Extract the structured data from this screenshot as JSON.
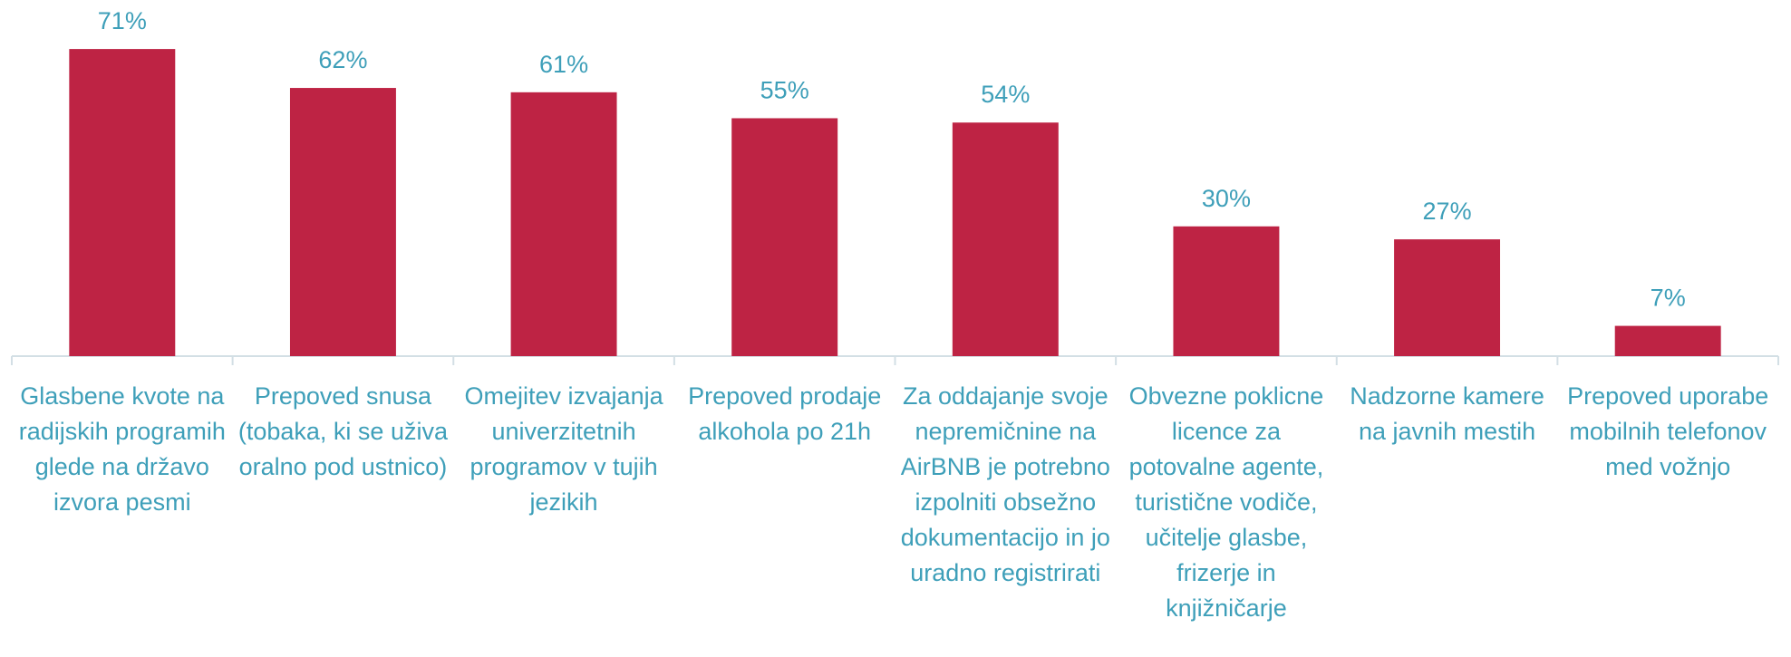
{
  "chart_data": {
    "type": "bar",
    "categories": [
      "Glasbene kvote na radijskih programih glede na državo izvora pesmi",
      "Prepoved snusa (tobaka, ki se uživa oralno pod ustnico)",
      "Omejitev izvajanja univerzitetnih programov v tujih jezikih",
      "Prepoved prodaje alkohola po 21h",
      "Za oddajanje svoje nepremičnine na AirBNB je potrebno izpolniti obsežno dokumentacijo in jo uradno registrirati",
      "Obvezne poklicne licence za potovalne agente, turistične vodiče, učitelje glasbe, frizerje in knjižničarje",
      "Nadzorne kamere na javnih mestih",
      "Prepoved uporabe mobilnih telefonov med vožnjo"
    ],
    "values": [
      71,
      62,
      61,
      55,
      54,
      30,
      27,
      7
    ],
    "value_labels": [
      "71%",
      "62%",
      "61%",
      "55%",
      "54%",
      "30%",
      "27%",
      "7%"
    ],
    "color": "#be2344",
    "ylim": [
      0,
      75
    ]
  }
}
